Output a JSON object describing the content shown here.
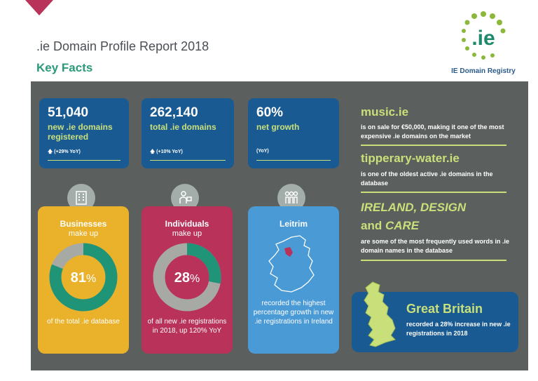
{
  "header": {
    "title": ".ie Domain Profile Report 2018",
    "subtitle": "Key Facts",
    "logo_text": ".ie",
    "logo_caption": "IE Domain Registry"
  },
  "stats": [
    {
      "value": "51,040",
      "label": "new .ie domains registered",
      "yoy": "(+29% YoY)",
      "arrow": "up-arrow-icon"
    },
    {
      "value": "262,140",
      "label": "total .ie domains",
      "yoy": "(+10% YoY)",
      "arrow": "up-arrow-icon"
    },
    {
      "value": "60%",
      "label": "net growth",
      "yoy": "(YoY)"
    }
  ],
  "cards": {
    "businesses": {
      "title": "Businesses",
      "sub": "make up",
      "value": 81,
      "value_text": "81",
      "pct": "%",
      "foot": "of the total .ie database",
      "color": "#e9b22a",
      "ring": "#1f9477"
    },
    "individuals": {
      "title": "Individuals",
      "sub": "make up",
      "value": 28,
      "value_text": "28",
      "pct": "%",
      "foot": "of all new .ie registrations in 2018, up 120% YoY",
      "color": "#b8325a",
      "ring": "#1f9477"
    },
    "leitrim": {
      "title": "Leitrim",
      "foot": "recorded the highest percentage growth in new .ie registrations in Ireland",
      "color": "#4a9ad6"
    }
  },
  "facts": [
    {
      "head": "music.ie",
      "text": "is on sale for €50,000, making it one of the most expensive .ie domains on the market"
    },
    {
      "head": "tipperary-water.ie",
      "text": "is one of the oldest active .ie domains in the database"
    },
    {
      "head_a": "IRELAND, DESIGN",
      "head_b_and": "and",
      "head_b_care": "CARE",
      "text": "are some of the most frequently used words in .ie domain names in the database"
    }
  ],
  "gb": {
    "head": "Great Britain",
    "text": "recorded a 28% increase in new .ie registrations in 2018"
  }
}
